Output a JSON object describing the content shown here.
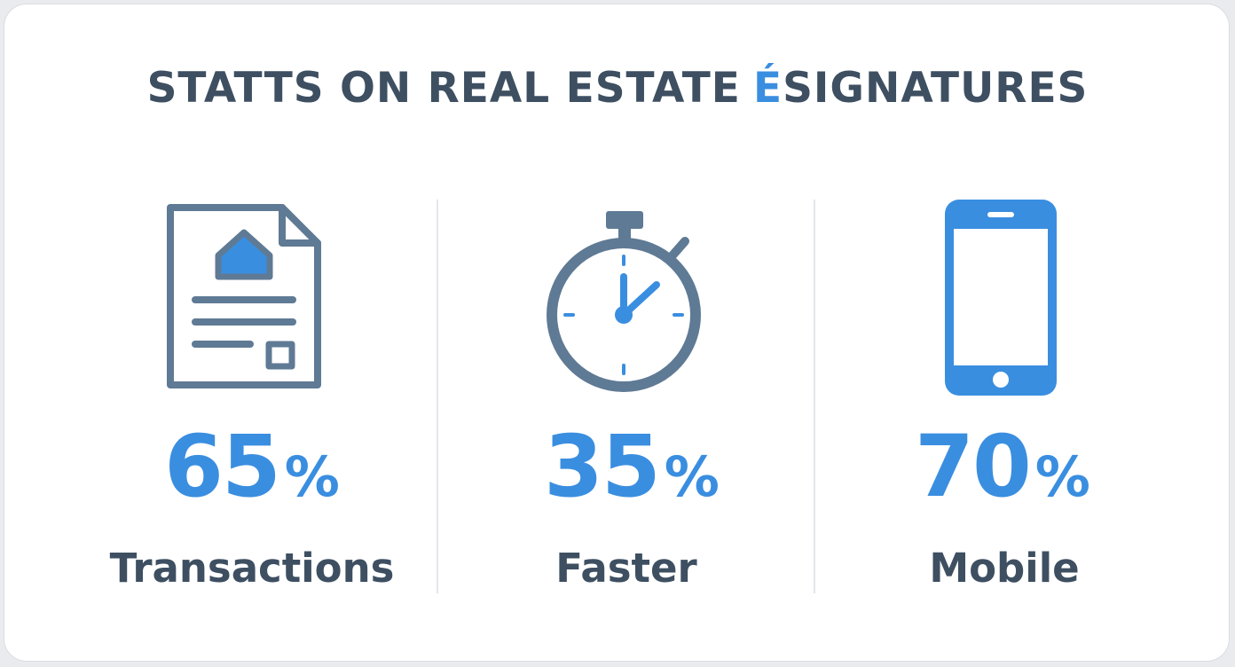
{
  "header": {
    "title": {
      "parts": [
        "STATTS ON REAL ESTATE",
        "É",
        "SIGNATURES"
      ]
    }
  },
  "stats": [
    {
      "value": "65",
      "unit": "%",
      "label": "Transactions"
    },
    {
      "value": "35",
      "unit": "%",
      "label": "Faster"
    },
    {
      "value": "70",
      "unit": "%",
      "label": "Mobile"
    }
  ]
}
